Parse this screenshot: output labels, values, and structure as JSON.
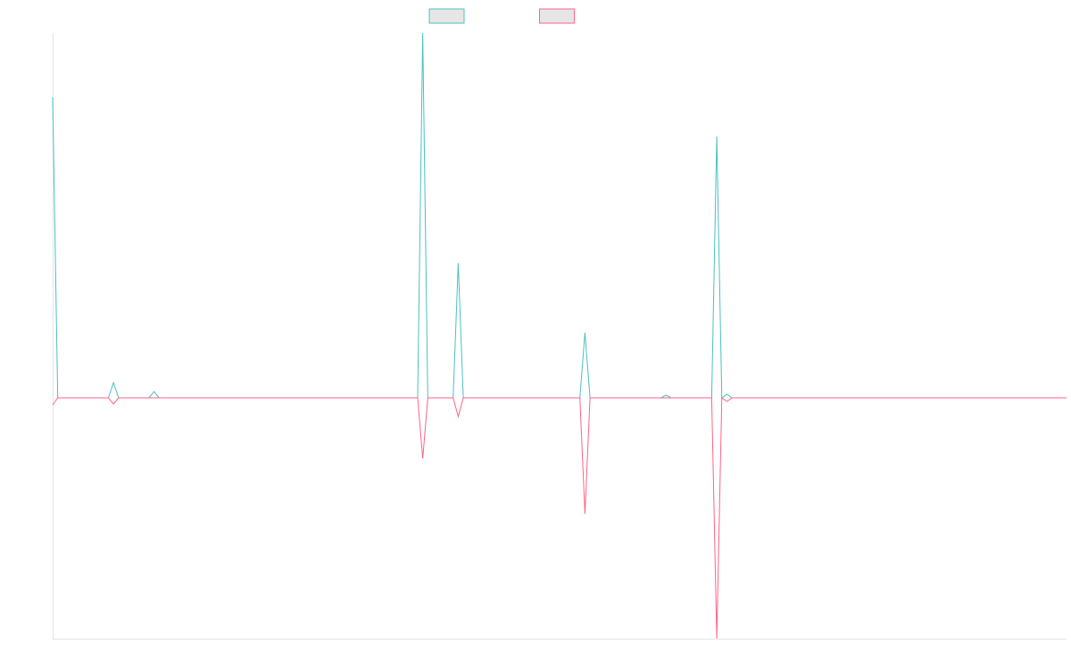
{
  "chart_data": {
    "type": "line",
    "x": [
      0,
      1,
      11,
      12,
      13,
      19,
      20,
      21,
      72,
      73,
      74,
      79,
      80,
      81,
      104,
      105,
      106,
      120,
      121,
      122,
      130,
      131,
      132,
      133,
      134,
      200
    ],
    "xlim": [
      0,
      200
    ],
    "ylim": [
      -270,
      409
    ],
    "series": [
      {
        "color": "#4bc0c0",
        "values": [
          337,
          0,
          0,
          17,
          0,
          0,
          7,
          0,
          0,
          409,
          0,
          0,
          151,
          0,
          0,
          73,
          0,
          0,
          3,
          0,
          0,
          293,
          0,
          4,
          0,
          0
        ]
      },
      {
        "color": "#ff6384",
        "values": [
          -8,
          0,
          0,
          -7,
          0,
          0,
          0,
          0,
          0,
          -68,
          0,
          0,
          -21,
          0,
          0,
          -130,
          0,
          0,
          0,
          0,
          0,
          -270,
          0,
          -4,
          0,
          0
        ]
      }
    ]
  }
}
